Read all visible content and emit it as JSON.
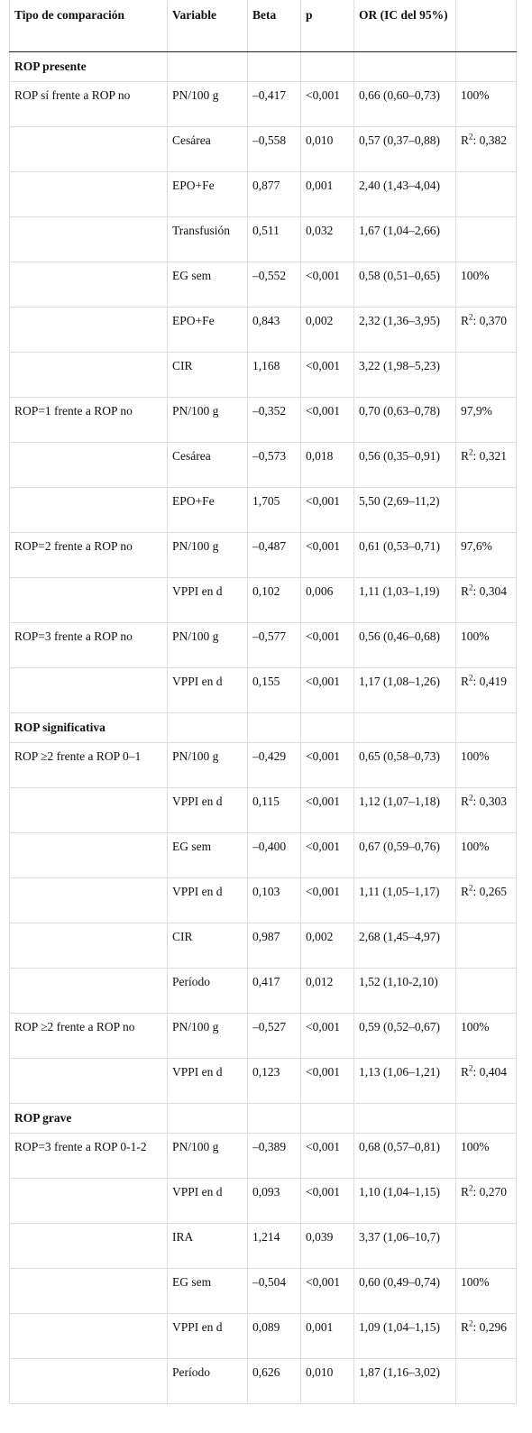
{
  "table": {
    "header": [
      "Tipo de comparación",
      "Variable",
      "Beta",
      "p",
      "OR (IC del 95%)",
      null
    ],
    "rows": [
      {
        "section": "ROP presente"
      },
      [
        "ROP sí frente a ROP no",
        "PN/100 g",
        "–0,417",
        "<0,001",
        "0,66 (0,60–0,73)",
        "100%"
      ],
      [
        null,
        "Cesárea",
        "–0,558",
        "0,010",
        "0,57 (0,37–0,88)",
        {
          "base": "R",
          "sup": "2",
          "rest": ": 0,382"
        }
      ],
      [
        null,
        "EPO+Fe",
        "0,877",
        "0,001",
        "2,40 (1,43–4,04)",
        null
      ],
      [
        null,
        "Transfusión",
        "0,511",
        "0,032",
        "1,67 (1,04–2,66)",
        null
      ],
      [
        null,
        "EG sem",
        "–0,552",
        "<0,001",
        "0,58 (0,51–0,65)",
        "100%"
      ],
      [
        null,
        "EPO+Fe",
        "0,843",
        "0,002",
        "2,32 (1,36–3,95)",
        {
          "base": "R",
          "sup": "2",
          "rest": ": 0,370"
        }
      ],
      [
        null,
        "CIR",
        "1,168",
        "<0,001",
        "3,22 (1,98–5,23)",
        null
      ],
      [
        "ROP=1 frente a ROP no",
        "PN/100 g",
        "–0,352",
        "<0,001",
        "0,70 (0,63–0,78)",
        "97,9%"
      ],
      [
        null,
        "Cesárea",
        "–0,573",
        "0,018",
        "0,56 (0,35–0,91)",
        {
          "base": "R",
          "sup": "2",
          "rest": ": 0,321"
        }
      ],
      [
        null,
        "EPO+Fe",
        "1,705",
        "<0,001",
        "5,50 (2,69–11,2)",
        null
      ],
      [
        "ROP=2 frente a ROP no",
        "PN/100 g",
        "–0,487",
        "<0,001",
        "0,61 (0,53–0,71)",
        "97,6%"
      ],
      [
        null,
        "VPPI en d",
        "0,102",
        "0,006",
        "1,11 (1,03–1,19)",
        {
          "base": "R",
          "sup": "2",
          "rest": ": 0,304"
        }
      ],
      [
        "ROP=3 frente a ROP no",
        "PN/100 g",
        "–0,577",
        "<0,001",
        "0,56 (0,46–0,68)",
        "100%"
      ],
      [
        null,
        "VPPI en d",
        "0,155",
        "<0,001",
        "1,17 (1,08–1,26)",
        {
          "base": "R",
          "sup": "2",
          "rest": ": 0,419"
        }
      ],
      {
        "section": "ROP significativa"
      },
      [
        "ROP ≥2 frente a ROP 0–1",
        "PN/100 g",
        "–0,429",
        "<0,001",
        "0,65 (0,58–0,73)",
        "100%"
      ],
      [
        null,
        "VPPI en d",
        "0,115",
        "<0,001",
        "1,12 (1,07–1,18)",
        {
          "base": "R",
          "sup": "2",
          "rest": ": 0,303"
        }
      ],
      [
        null,
        "EG sem",
        "–0,400",
        "<0,001",
        "0,67 (0,59–0,76)",
        "100%"
      ],
      [
        null,
        "VPPI en d",
        "0,103",
        "<0,001",
        "1,11 (1,05–1,17)",
        {
          "base": "R",
          "sup": "2",
          "rest": ": 0,265"
        }
      ],
      [
        null,
        "CIR",
        "0,987",
        "0,002",
        "2,68 (1,45–4,97)",
        null
      ],
      [
        null,
        "Período",
        "0,417",
        "0,012",
        "1,52 (1,10-2,10)",
        null
      ],
      [
        "ROP ≥2 frente a ROP no",
        "PN/100 g",
        "–0,527",
        "<0,001",
        "0,59 (0,52–0,67)",
        "100%"
      ],
      [
        null,
        "VPPI en d",
        "0,123",
        "<0,001",
        "1,13 (1,06–1,21)",
        {
          "base": "R",
          "sup": "2",
          "rest": ": 0,404"
        }
      ],
      {
        "section": "ROP grave"
      },
      [
        "ROP=3 frente a ROP 0-1-2",
        "PN/100 g",
        "–0,389",
        "<0,001",
        "0,68 (0,57–0,81)",
        "100%"
      ],
      [
        null,
        "VPPI en d",
        "0,093",
        "<0,001",
        "1,10 (1,04–1,15)",
        {
          "base": "R",
          "sup": "2",
          "rest": ": 0,270"
        }
      ],
      [
        null,
        "IRA",
        "1,214",
        "0,039",
        "3,37 (1,06–10,7)",
        null
      ],
      [
        null,
        "EG sem",
        "–0,504",
        "<0,001",
        "0,60 (0,49–0,74)",
        "100%"
      ],
      [
        null,
        "VPPI en d",
        "0,089",
        "0,001",
        "1,09 (1,04–1,15)",
        {
          "base": "R",
          "sup": "2",
          "rest": ": 0,296"
        }
      ],
      [
        null,
        "Período",
        "0,626",
        "0,010",
        "1,87 (1,16–3,02)",
        null
      ]
    ]
  }
}
